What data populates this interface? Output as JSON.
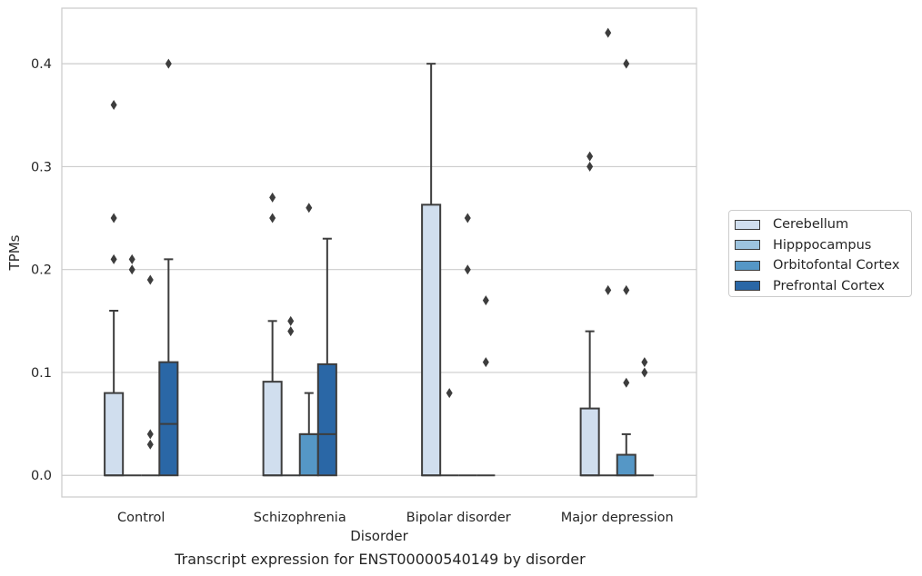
{
  "caption": "Transcript expression for ENST00000540149 by disorder",
  "chart_data": {
    "type": "boxplot",
    "title": "",
    "xlabel": "Disorder",
    "ylabel": "TPMs",
    "ylim": [
      -0.021,
      0.454
    ],
    "yticks": [
      0.0,
      0.1,
      0.2,
      0.3,
      0.4
    ],
    "ytick_labels": [
      "0.0",
      "0.1",
      "0.2",
      "0.3",
      "0.4"
    ],
    "grid": "horizontal",
    "legend_placement": "right",
    "categories": [
      "Control",
      "Schizophrenia",
      "Bipolar disorder",
      "Major depression"
    ],
    "series": [
      {
        "name": "Cerebellum",
        "color": "#d0deee",
        "boxes": [
          {
            "q1": 0,
            "median": 0,
            "q3": 0.08,
            "whisker_low": 0,
            "whisker_high": 0.16,
            "outliers": [
              0.36,
              0.25,
              0.21
            ]
          },
          {
            "q1": 0,
            "median": 0,
            "q3": 0.091,
            "whisker_low": 0,
            "whisker_high": 0.15,
            "outliers": [
              0.27,
              0.25
            ]
          },
          {
            "q1": 0,
            "median": 0,
            "q3": 0.263,
            "whisker_low": 0,
            "whisker_high": 0.4,
            "outliers": []
          },
          {
            "q1": 0,
            "median": 0,
            "q3": 0.065,
            "whisker_low": 0,
            "whisker_high": 0.14,
            "outliers": [
              0.31,
              0.3
            ]
          }
        ]
      },
      {
        "name": "Hipppocampus",
        "color": "#9dc3de",
        "boxes": [
          {
            "q1": 0,
            "median": 0,
            "q3": 0,
            "whisker_low": 0,
            "whisker_high": 0,
            "outliers": [
              0.21,
              0.2
            ]
          },
          {
            "q1": 0,
            "median": 0,
            "q3": 0,
            "whisker_low": 0,
            "whisker_high": 0,
            "outliers": [
              0.15,
              0.14
            ]
          },
          {
            "q1": 0,
            "median": 0,
            "q3": 0,
            "whisker_low": 0,
            "whisker_high": 0,
            "outliers": [
              0.08
            ]
          },
          {
            "q1": 0,
            "median": 0,
            "q3": 0,
            "whisker_low": 0,
            "whisker_high": 0,
            "outliers": [
              0.43,
              0.18
            ]
          }
        ]
      },
      {
        "name": "Orbitofontal Cortex",
        "color": "#5597c6",
        "boxes": [
          {
            "q1": 0,
            "median": 0,
            "q3": 0,
            "whisker_low": 0,
            "whisker_high": 0,
            "outliers": [
              0.19,
              0.04,
              0.03
            ]
          },
          {
            "q1": 0,
            "median": 0.04,
            "q3": 0.04,
            "whisker_low": 0,
            "whisker_high": 0.08,
            "outliers": [
              0.26
            ]
          },
          {
            "q1": 0,
            "median": 0,
            "q3": 0,
            "whisker_low": 0,
            "whisker_high": 0,
            "outliers": [
              0.25,
              0.2
            ]
          },
          {
            "q1": 0,
            "median": 0,
            "q3": 0.02,
            "whisker_low": 0,
            "whisker_high": 0.04,
            "outliers": [
              0.4,
              0.18,
              0.09
            ]
          }
        ]
      },
      {
        "name": "Prefrontal Cortex",
        "color": "#2a67a6",
        "boxes": [
          {
            "q1": 0,
            "median": 0.05,
            "q3": 0.11,
            "whisker_low": 0,
            "whisker_high": 0.21,
            "outliers": [
              0.4
            ]
          },
          {
            "q1": 0,
            "median": 0.04,
            "q3": 0.108,
            "whisker_low": 0,
            "whisker_high": 0.23,
            "outliers": []
          },
          {
            "q1": 0,
            "median": 0,
            "q3": 0,
            "whisker_low": 0,
            "whisker_high": 0,
            "outliers": [
              0.17,
              0.11
            ]
          },
          {
            "q1": 0,
            "median": 0,
            "q3": 0,
            "whisker_low": 0,
            "whisker_high": 0,
            "outliers": [
              0.11,
              0.1
            ]
          }
        ]
      }
    ]
  }
}
